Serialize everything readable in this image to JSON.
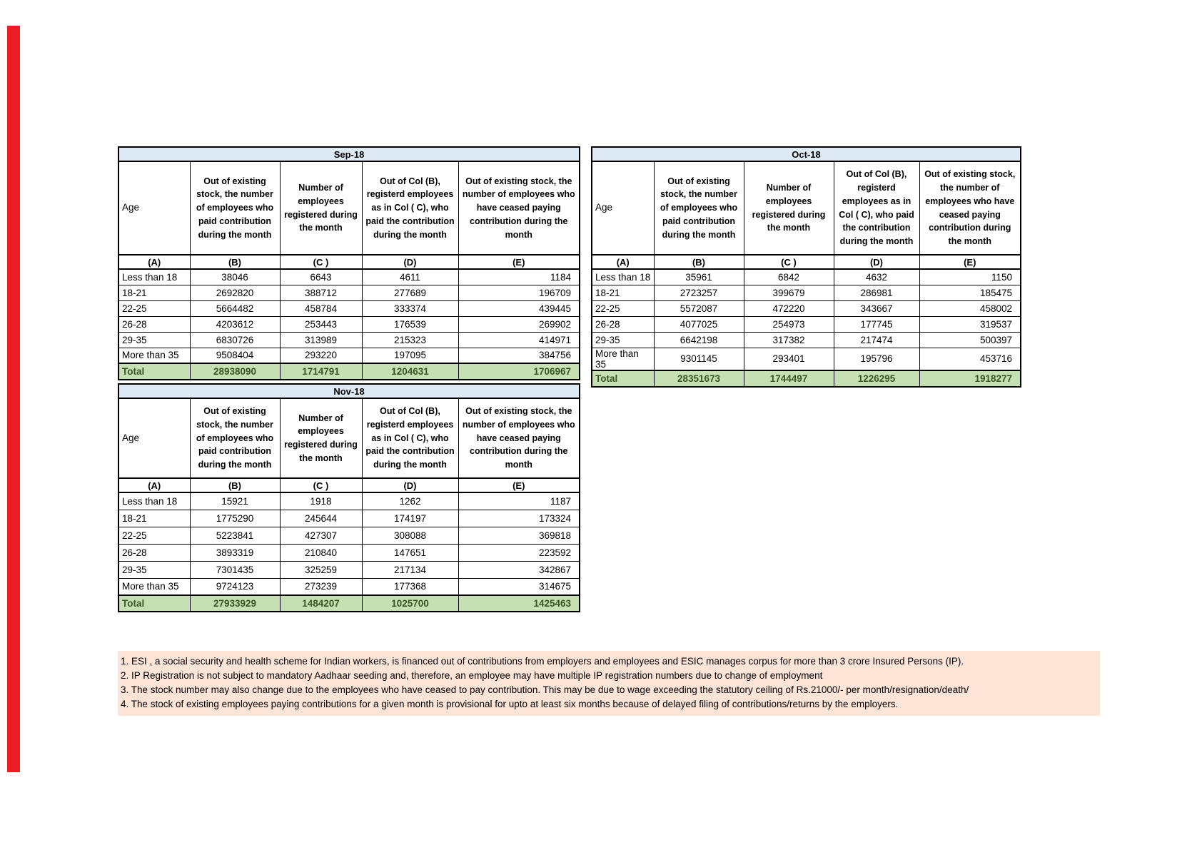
{
  "page": {
    "background_color": "#ffffff",
    "accent_bar_color": "#ee1c25"
  },
  "colors": {
    "month_header_bg": "#DEEBF7",
    "total_row_bg": "#C6E0B4",
    "total_text_color": "#375623",
    "footnote_bg": "#FCE4D6",
    "border_color": "#000000"
  },
  "shared_headers": {
    "age": "Age",
    "col_b": "Out of existing stock, the number of employees who paid contribution during the month",
    "col_c": "Number of employees registered during the month",
    "col_d": "Out of Col (B), registerd employees as in Col ( C), who paid the contribution during the month",
    "col_e": "Out of existing stock, the number of employees who have ceased paying contribution during the month",
    "letters": [
      "(A)",
      "(B)",
      "(C )",
      "(D)",
      "(E)"
    ]
  },
  "tables": [
    {
      "month": "Sep-18",
      "rows": [
        [
          "Less than 18",
          "38046",
          "6643",
          "4611",
          "1184"
        ],
        [
          "18-21",
          "2692820",
          "388712",
          "277689",
          "196709"
        ],
        [
          "22-25",
          "5664482",
          "458784",
          "333374",
          "439445"
        ],
        [
          "26-28",
          "4203612",
          "253443",
          "176539",
          "269902"
        ],
        [
          "29-35",
          "6830726",
          "313989",
          "215323",
          "414971"
        ],
        [
          "More than 35",
          "9508404",
          "293220",
          "197095",
          "384756"
        ]
      ],
      "total": [
        "Total",
        "28938090",
        "1714791",
        "1204631",
        "1706967"
      ]
    },
    {
      "month": "Oct-18",
      "rows": [
        [
          "Less than 18",
          "35961",
          "6842",
          "4632",
          "1150"
        ],
        [
          "18-21",
          "2723257",
          "399679",
          "286981",
          "185475"
        ],
        [
          "22-25",
          "5572087",
          "472220",
          "343667",
          "458002"
        ],
        [
          "26-28",
          "4077025",
          "254973",
          "177745",
          "319537"
        ],
        [
          "29-35",
          "6642198",
          "317382",
          "217474",
          "500397"
        ],
        [
          "More than 35",
          "9301145",
          "293401",
          "195796",
          "453716"
        ]
      ],
      "total": [
        "Total",
        "28351673",
        "1744497",
        "1226295",
        "1918277"
      ]
    },
    {
      "month": "Nov-18",
      "rows": [
        [
          "Less than 18",
          "15921",
          "1918",
          "1262",
          "1187"
        ],
        [
          "18-21",
          "1775290",
          "245644",
          "174197",
          "173324"
        ],
        [
          "22-25",
          "5223841",
          "427307",
          "308088",
          "369818"
        ],
        [
          "26-28",
          "3893319",
          "210840",
          "147651",
          "223592"
        ],
        [
          "29-35",
          "7301435",
          "325259",
          "217134",
          "342867"
        ],
        [
          "More than 35",
          "9724123",
          "273239",
          "177368",
          "314675"
        ]
      ],
      "total": [
        "Total",
        "27933929",
        "1484207",
        "1025700",
        "1425463"
      ]
    }
  ],
  "footnotes": [
    "1. ESI , a social security and health scheme for Indian workers, is financed out of contributions from employers and employees and ESIC manages corpus for more than 3 crore Insured Persons (IP).",
    "2. IP Registration is not subject to mandatory Aadhaar seeding and, therefore, an employee may have multiple IP registration numbers due to change of employment",
    "3. The stock number may also change due to the employees who have ceased to pay contribution. This may be due to wage exceeding the statutory ceiling of Rs.21000/- per month/resignation/death/",
    "4. The stock of existing employees paying contributions for a given month is provisional for upto at least six months because of delayed filing of contributions/returns by the employers."
  ]
}
